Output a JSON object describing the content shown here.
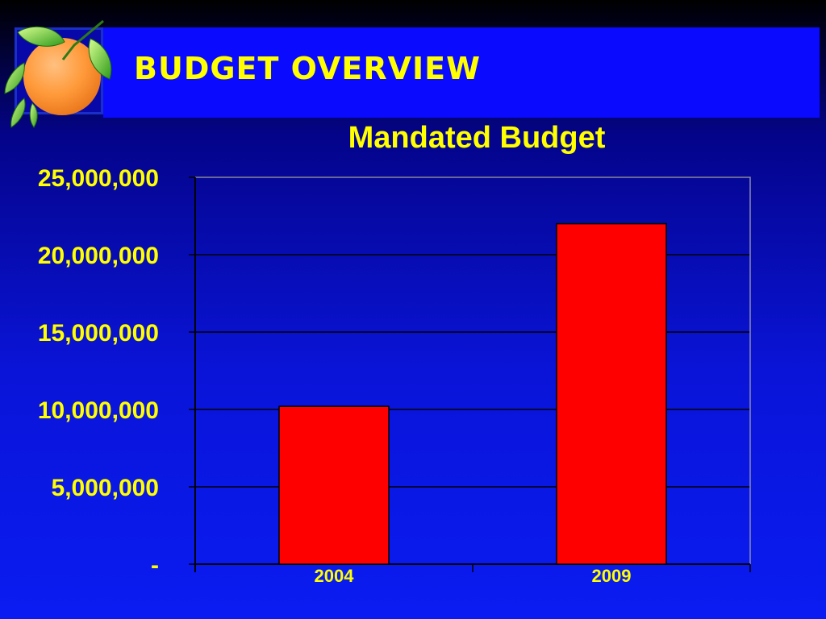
{
  "slide": {
    "title": "BUDGET OVERVIEW",
    "logo": "orange-fruit-logo"
  },
  "colors": {
    "title": "#ffff00",
    "header_band": "#0a0aff",
    "bar_fill": "#ff0000",
    "gridline": "#000000",
    "text": "#ffff00"
  },
  "chart_data": {
    "type": "bar",
    "title": "Mandated Budget",
    "categories": [
      "2004",
      "2009"
    ],
    "values": [
      10200000,
      22000000
    ],
    "ylim": [
      0,
      25000000
    ],
    "yticks": [
      0,
      5000000,
      10000000,
      15000000,
      20000000,
      25000000
    ],
    "ytick_labels": [
      "-",
      "5,000,000",
      "10,000,000",
      "15,000,000",
      "20,000,000",
      "25,000,000"
    ],
    "xlabel": "",
    "ylabel": "",
    "grid": true,
    "legend": "none"
  }
}
